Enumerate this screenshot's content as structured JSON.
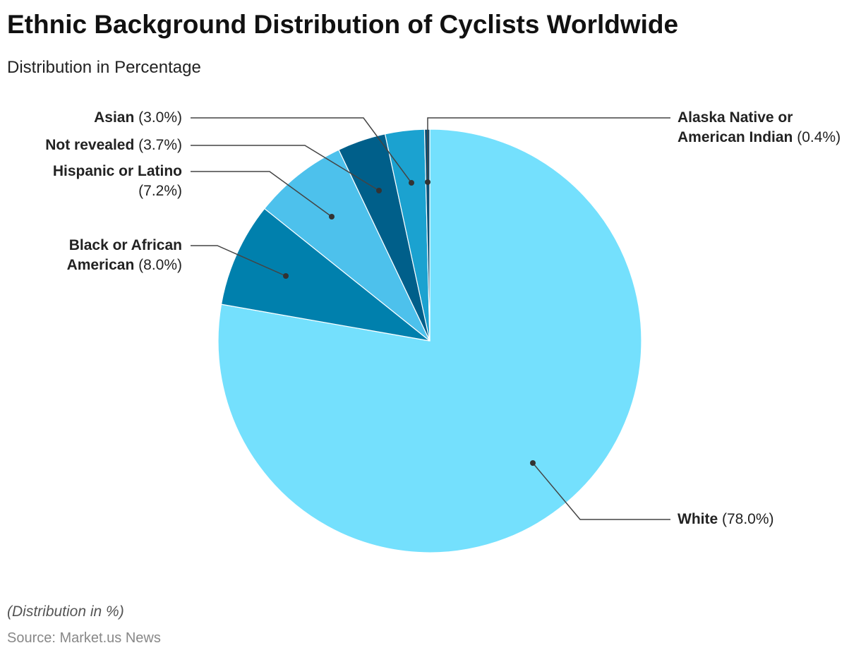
{
  "title": "Ethnic Background Distribution of Cyclists Worldwide",
  "subtitle": "Distribution in Percentage",
  "note": "(Distribution in %)",
  "source": "Source: Market.us News",
  "chart_data": {
    "type": "pie",
    "title": "Ethnic Background Distribution of Cyclists Worldwide",
    "subtitle": "Distribution in Percentage",
    "start": "top, clockwise",
    "slices": [
      {
        "name": "White",
        "value": 78.0,
        "pct": "(78.0%)",
        "color": "#74e0fd"
      },
      {
        "name": "Black or African American",
        "value": 8.0,
        "pct": "(8.0%)",
        "color": "#0080ad"
      },
      {
        "name": "Hispanic or Latino",
        "value": 7.2,
        "pct": "(7.2%)",
        "color": "#4dc1ec"
      },
      {
        "name": "Not revealed",
        "value": 3.7,
        "pct": "(3.7%)",
        "color": "#005f8a"
      },
      {
        "name": "Asian",
        "value": 3.0,
        "pct": "(3.0%)",
        "color": "#1ba2d0"
      },
      {
        "name": "Alaska Native or American Indian",
        "value": 0.4,
        "pct": "(0.4%)",
        "color": "#0b5077"
      }
    ]
  }
}
